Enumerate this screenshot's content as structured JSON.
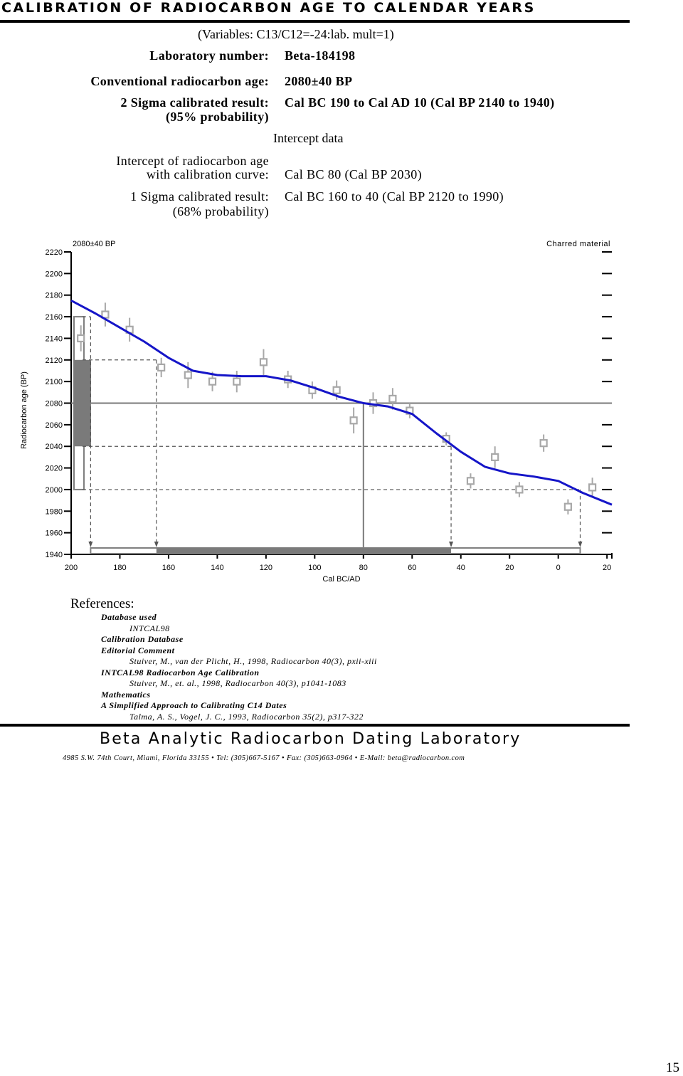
{
  "header": {
    "title": "CALIBRATION OF RADIOCARBON AGE TO CALENDAR YEARS",
    "variables": "(Variables: C13/C12=-24:lab. mult=1)"
  },
  "info": {
    "lab_number_label": "Laboratory number:",
    "lab_number_value": "Beta-184198",
    "conv_age_label": "Conventional radiocarbon age:",
    "conv_age_value": "2080±40 BP",
    "sigma2_label": "2 Sigma calibrated result:",
    "sigma2_prob": "(95% probability)",
    "sigma2_value": "Cal BC 190 to Cal AD 10 (Cal BP 2140 to 1940)",
    "intercept_title": "Intercept data",
    "intercept_label_1": "Intercept of radiocarbon age",
    "intercept_label_2": "with calibration curve:",
    "intercept_value": "Cal BC 80 (Cal BP 2030)",
    "sigma1_label": "1 Sigma calibrated result:",
    "sigma1_prob": "(68% probability)",
    "sigma1_value": "Cal BC 160 to 40 (Cal BP 2120 to 1990)"
  },
  "chart_data": {
    "type": "line",
    "top_left_label": "2080±40 BP",
    "top_right_label": "Charred material",
    "ylabel": "Radiocarbon age (BP)",
    "xlabel": "Cal BC/AD",
    "x_ticks": [
      "200",
      "180",
      "160",
      "140",
      "120",
      "100",
      "80",
      "60",
      "40",
      "20",
      "0",
      "20"
    ],
    "y_ticks": [
      "2220",
      "2200",
      "2180",
      "2160",
      "2140",
      "2120",
      "2100",
      "2080",
      "2060",
      "2040",
      "2020",
      "2000",
      "1980",
      "1960",
      "1940"
    ],
    "x_range": [
      -200,
      22
    ],
    "y_range": [
      1940,
      2220
    ],
    "colors": {
      "curve": "#1515c8",
      "data": "#a8a8a8",
      "measurement": "#7a7a7a",
      "ranges": "#7f7f7f"
    },
    "measurement": {
      "age": 2080,
      "sigma1": [
        2040,
        2120
      ],
      "sigma2": [
        2000,
        2160
      ]
    },
    "curve": [
      [
        -200,
        2175
      ],
      [
        -190,
        2163
      ],
      [
        -180,
        2150
      ],
      [
        -170,
        2137
      ],
      [
        -160,
        2122
      ],
      [
        -150,
        2110
      ],
      [
        -140,
        2106
      ],
      [
        -130,
        2105
      ],
      [
        -120,
        2105
      ],
      [
        -110,
        2101
      ],
      [
        -100,
        2094
      ],
      [
        -90,
        2086
      ],
      [
        -80,
        2080
      ],
      [
        -70,
        2077
      ],
      [
        -60,
        2070
      ],
      [
        -50,
        2052
      ],
      [
        -40,
        2035
      ],
      [
        -30,
        2021
      ],
      [
        -20,
        2015
      ],
      [
        -10,
        2012
      ],
      [
        0,
        2008
      ],
      [
        10,
        1997
      ],
      [
        22,
        1986
      ]
    ],
    "points": [
      [
        -196,
        2140,
        12
      ],
      [
        -186,
        2162,
        11
      ],
      [
        -176,
        2148,
        11
      ],
      [
        -163,
        2113,
        9
      ],
      [
        -152,
        2106,
        12
      ],
      [
        -142,
        2100,
        9
      ],
      [
        -132,
        2100,
        10
      ],
      [
        -121,
        2118,
        12
      ],
      [
        -111,
        2102,
        8
      ],
      [
        -101,
        2092,
        8
      ],
      [
        -91,
        2092,
        9
      ],
      [
        -84,
        2064,
        12
      ],
      [
        -76,
        2080,
        10
      ],
      [
        -68,
        2084,
        10
      ],
      [
        -61,
        2073,
        7
      ],
      [
        -46,
        2047,
        6
      ],
      [
        -36,
        2008,
        7
      ],
      [
        -26,
        2030,
        10
      ],
      [
        -16,
        2000,
        7
      ],
      [
        -6,
        2043,
        8
      ],
      [
        4,
        1984,
        7
      ],
      [
        14,
        2002,
        9
      ]
    ],
    "intercepts_age": [
      2120,
      2040,
      2000
    ],
    "sigma2_range": [
      -192,
      9
    ],
    "sigma1_range": [
      -165,
      -44
    ],
    "intercept_x": -80,
    "range_drop_points": [
      [
        -192,
        2160
      ],
      [
        -165,
        2120
      ],
      [
        -44,
        2040
      ],
      [
        9,
        2000
      ]
    ]
  },
  "references": {
    "title": "References:",
    "items": [
      {
        "text": "Database used",
        "style": "h"
      },
      {
        "text": "INTCAL98",
        "style": "i"
      },
      {
        "text": "Calibration Database",
        "style": "h"
      },
      {
        "text": "Editorial Comment",
        "style": "h"
      },
      {
        "text": "Stuiver, M., van der Plicht, H., 1998, Radiocarbon 40(3), pxii-xiii",
        "style": "i"
      },
      {
        "text": "INTCAL98 Radiocarbon Age Calibration",
        "style": "h"
      },
      {
        "text": "Stuiver, M., et. al., 1998, Radiocarbon 40(3), p1041-1083",
        "style": "i"
      },
      {
        "text": "Mathematics",
        "style": "h"
      },
      {
        "text": "A Simplified Approach to Calibrating C14 Dates",
        "style": "h"
      },
      {
        "text": "Talma, A. S., Vogel, J. C., 1993, Radiocarbon 35(2), p317-322",
        "style": "i"
      }
    ]
  },
  "footer": {
    "lab": "Beta Analytic Radiocarbon Dating Laboratory",
    "address": "4985 S.W. 74th Court, Miami, Florida 33155 • Tel: (305)667-5167 • Fax: (305)663-0964 • E-Mail: beta@radiocarbon.com"
  },
  "page_number": "15"
}
